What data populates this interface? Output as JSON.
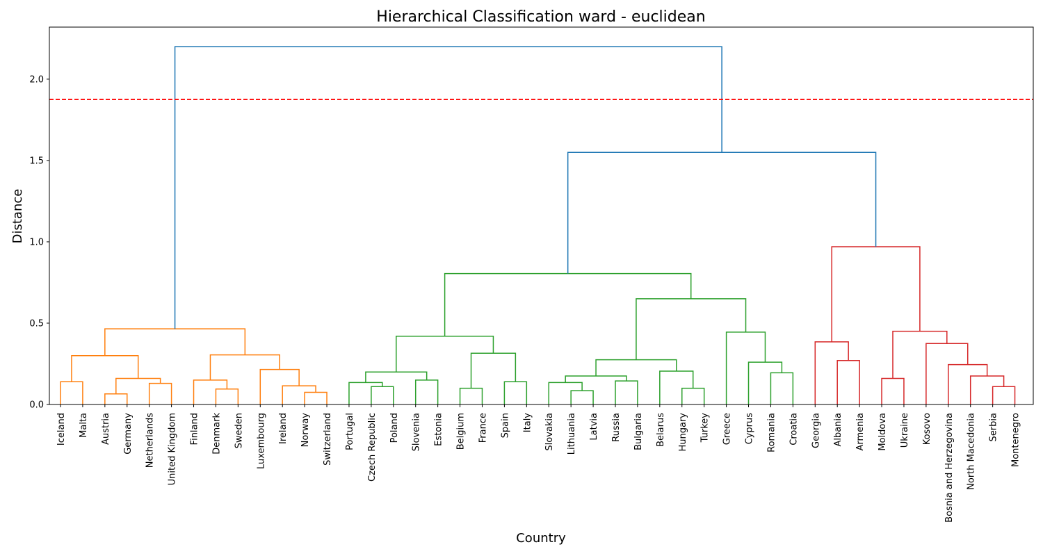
{
  "chart_data": {
    "type": "dendrogram",
    "title": "Hierarchical Classification ward - euclidean",
    "xlabel": "Country",
    "ylabel": "Distance",
    "ylim": [
      0,
      2.32
    ],
    "yticks": [
      "0.0",
      "0.5",
      "1.0",
      "1.5",
      "2.0"
    ],
    "ytick_values": [
      0,
      0.5,
      1.0,
      1.5,
      2.0
    ],
    "cut_line": {
      "value": 1.875,
      "color": "#ff0000",
      "style": "dashed"
    },
    "grid": false,
    "colors": {
      "cluster1": "#ff7f0e",
      "cluster2": "#2ca02c",
      "cluster3": "#d62728",
      "above": "#1f77b4"
    },
    "leaves": [
      "Iceland",
      "Malta",
      "Austria",
      "Germany",
      "Netherlands",
      "United Kingdom",
      "Finland",
      "Denmark",
      "Sweden",
      "Luxembourg",
      "Ireland",
      "Norway",
      "Switzerland",
      "Portugal",
      "Czech Republic",
      "Poland",
      "Slovenia",
      "Estonia",
      "Belgium",
      "France",
      "Spain",
      "Italy",
      "Slovakia",
      "Lithuania",
      "Latvia",
      "Russia",
      "Bulgaria",
      "Belarus",
      "Hungary",
      "Turkey",
      "Greece",
      "Cyprus",
      "Romania",
      "Croatia",
      "Georgia",
      "Albania",
      "Armenia",
      "Moldova",
      "Ukraine",
      "Kosovo",
      "Bosnia and Herzegovina",
      "North Macedonia",
      "Serbia",
      "Montenegro"
    ],
    "merges": [
      {
        "id": "A1",
        "left": "Iceland",
        "right": "Malta",
        "height": 0.14,
        "color": "cluster1"
      },
      {
        "id": "A2",
        "left": "Austria",
        "right": "Germany",
        "height": 0.065,
        "color": "cluster1"
      },
      {
        "id": "A3",
        "left": "Netherlands",
        "right": "United Kingdom",
        "height": 0.13,
        "color": "cluster1"
      },
      {
        "id": "A4",
        "left": "A2",
        "right": "A3",
        "height": 0.16,
        "color": "cluster1"
      },
      {
        "id": "A5",
        "left": "A1",
        "right": "A4",
        "height": 0.3,
        "color": "cluster1"
      },
      {
        "id": "A6",
        "left": "Denmark",
        "right": "Sweden",
        "height": 0.095,
        "color": "cluster1"
      },
      {
        "id": "A7",
        "left": "Finland",
        "right": "A6",
        "height": 0.15,
        "color": "cluster1"
      },
      {
        "id": "A8",
        "left": "Norway",
        "right": "Switzerland",
        "height": 0.075,
        "color": "cluster1"
      },
      {
        "id": "A9",
        "left": "Ireland",
        "right": "A8",
        "height": 0.115,
        "color": "cluster1"
      },
      {
        "id": "A10",
        "left": "Luxembourg",
        "right": "A9",
        "height": 0.215,
        "color": "cluster1"
      },
      {
        "id": "A11",
        "left": "A7",
        "right": "A10",
        "height": 0.305,
        "color": "cluster1"
      },
      {
        "id": "A12",
        "left": "A5",
        "right": "A11",
        "height": 0.465,
        "color": "cluster1"
      },
      {
        "id": "B1",
        "left": "Czech Republic",
        "right": "Poland",
        "height": 0.11,
        "color": "cluster2"
      },
      {
        "id": "B2",
        "left": "Portugal",
        "right": "B1",
        "height": 0.135,
        "color": "cluster2"
      },
      {
        "id": "B3",
        "left": "Slovenia",
        "right": "Estonia",
        "height": 0.15,
        "color": "cluster2"
      },
      {
        "id": "B4",
        "left": "B2",
        "right": "B3",
        "height": 0.2,
        "color": "cluster2"
      },
      {
        "id": "B5",
        "left": "Belgium",
        "right": "France",
        "height": 0.1,
        "color": "cluster2"
      },
      {
        "id": "B6",
        "left": "Spain",
        "right": "Italy",
        "height": 0.14,
        "color": "cluster2"
      },
      {
        "id": "B7",
        "left": "B5",
        "right": "B6",
        "height": 0.315,
        "color": "cluster2"
      },
      {
        "id": "B8",
        "left": "B4",
        "right": "B7",
        "height": 0.42,
        "color": "cluster2"
      },
      {
        "id": "B9",
        "left": "Lithuania",
        "right": "Latvia",
        "height": 0.085,
        "color": "cluster2"
      },
      {
        "id": "B10",
        "left": "Slovakia",
        "right": "B9",
        "height": 0.135,
        "color": "cluster2"
      },
      {
        "id": "B11",
        "left": "Russia",
        "right": "Bulgaria",
        "height": 0.145,
        "color": "cluster2"
      },
      {
        "id": "B12",
        "left": "B10",
        "right": "B11",
        "height": 0.175,
        "color": "cluster2"
      },
      {
        "id": "B13",
        "left": "Hungary",
        "right": "Turkey",
        "height": 0.1,
        "color": "cluster2"
      },
      {
        "id": "B14",
        "left": "Belarus",
        "right": "B13",
        "height": 0.205,
        "color": "cluster2"
      },
      {
        "id": "B15",
        "left": "B12",
        "right": "B14",
        "height": 0.275,
        "color": "cluster2"
      },
      {
        "id": "B16",
        "left": "Romania",
        "right": "Croatia",
        "height": 0.195,
        "color": "cluster2"
      },
      {
        "id": "B17",
        "left": "Cyprus",
        "right": "B16",
        "height": 0.26,
        "color": "cluster2"
      },
      {
        "id": "B18",
        "left": "Greece",
        "right": "B17",
        "height": 0.445,
        "color": "cluster2"
      },
      {
        "id": "B19",
        "left": "B15",
        "right": "B18",
        "height": 0.65,
        "color": "cluster2"
      },
      {
        "id": "B20",
        "left": "B8",
        "right": "B19",
        "height": 0.805,
        "color": "cluster2"
      },
      {
        "id": "C1",
        "left": "Albania",
        "right": "Armenia",
        "height": 0.27,
        "color": "cluster3"
      },
      {
        "id": "C2",
        "left": "Georgia",
        "right": "C1",
        "height": 0.385,
        "color": "cluster3"
      },
      {
        "id": "C3",
        "left": "Moldova",
        "right": "Ukraine",
        "height": 0.16,
        "color": "cluster3"
      },
      {
        "id": "C4",
        "left": "Serbia",
        "right": "Montenegro",
        "height": 0.11,
        "color": "cluster3"
      },
      {
        "id": "C5",
        "left": "North Macedonia",
        "right": "C4",
        "height": 0.175,
        "color": "cluster3"
      },
      {
        "id": "C6",
        "left": "Bosnia and Herzegovina",
        "right": "C5",
        "height": 0.245,
        "color": "cluster3"
      },
      {
        "id": "C7",
        "left": "Kosovo",
        "right": "C6",
        "height": 0.375,
        "color": "cluster3"
      },
      {
        "id": "C8",
        "left": "C3",
        "right": "C7",
        "height": 0.45,
        "color": "cluster3"
      },
      {
        "id": "C9",
        "left": "C2",
        "right": "C8",
        "height": 0.97,
        "color": "cluster3"
      },
      {
        "id": "D1",
        "left": "B20",
        "right": "C9",
        "height": 1.55,
        "color": "above"
      },
      {
        "id": "D2",
        "left": "A12",
        "right": "D1",
        "height": 2.2,
        "color": "above"
      }
    ]
  }
}
